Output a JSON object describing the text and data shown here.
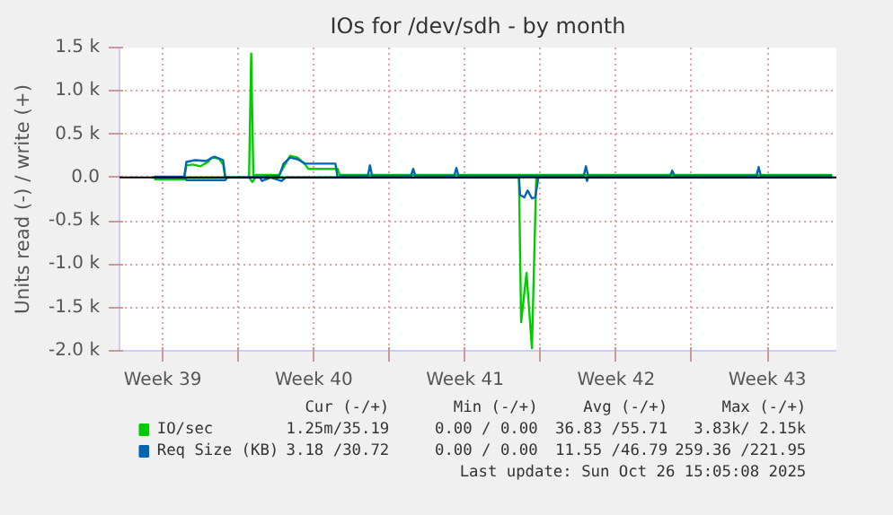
{
  "chart_data": {
    "type": "line",
    "title": "IOs for /dev/sdh - by month",
    "ylabel": "Units read (-) / write (+)",
    "xlim": [
      "2025-09-23T12:00",
      "2025-10-26T16:48"
    ],
    "ylim": [
      -2000,
      1500
    ],
    "xticks": [
      {
        "value": "2025-09-25T12:00",
        "label": "Week 39"
      },
      {
        "value": "2025-09-29T00:00",
        "label": null
      },
      {
        "value": "2025-10-02T12:00",
        "label": "Week 40"
      },
      {
        "value": "2025-10-06T00:00",
        "label": null
      },
      {
        "value": "2025-10-09T12:00",
        "label": "Week 41"
      },
      {
        "value": "2025-10-13T00:00",
        "label": null
      },
      {
        "value": "2025-10-16T12:00",
        "label": "Week 42"
      },
      {
        "value": "2025-10-20T00:00",
        "label": null
      },
      {
        "value": "2025-10-23T12:00",
        "label": "Week 43"
      }
    ],
    "yticks": [
      {
        "value": -2000,
        "label": "-2.0 k"
      },
      {
        "value": -1500,
        "label": "-1.5 k"
      },
      {
        "value": -1000,
        "label": "-1.0 k"
      },
      {
        "value": -500,
        "label": "-0.5 k"
      },
      {
        "value": 0,
        "label": "0.0"
      },
      {
        "value": 500,
        "label": "0.5 k"
      },
      {
        "value": 1000,
        "label": "1.0 k"
      },
      {
        "value": 1500,
        "label": "1.5 k"
      }
    ],
    "grid": true,
    "legend": "bottom",
    "ref_lines": [
      {
        "axis": "y",
        "value": 0,
        "color": "#000000"
      }
    ],
    "series": [
      {
        "name": "IO/sec",
        "color": "#00cc00",
        "x": [
          "2025-09-25T00:00",
          "2025-09-26T12:00",
          "2025-09-26T14:24",
          "2025-09-26T21:36",
          "2025-09-27T06:00",
          "2025-09-27T14:24",
          "2025-09-27T18:00",
          "2025-09-28T02:24",
          "2025-09-28T07:12",
          "2025-09-28T09:36",
          "2025-09-29T12:00",
          "2025-09-29T14:24",
          "2025-09-29T16:48",
          "2025-09-29T19:12",
          "2025-09-30T21:36",
          "2025-10-01T02:24",
          "2025-10-01T09:36",
          "2025-10-01T18:00",
          "2025-10-02T02:24",
          "2025-10-02T06:00",
          "2025-10-03T14:24",
          "2025-10-03T16:48",
          "2025-10-13T12:00",
          "2025-10-26T12:00"
        ],
        "values": [
          0,
          0,
          140,
          150,
          130,
          180,
          230,
          220,
          150,
          0,
          0,
          1430,
          0,
          30,
          30,
          120,
          250,
          230,
          150,
          100,
          100,
          30,
          30,
          30
        ]
      },
      {
        "name": "Req Size (KB)",
        "color": "#0066b3",
        "x": [
          "2025-09-25T02:24",
          "2025-09-26T12:00",
          "2025-09-26T14:24",
          "2025-09-27T00:00",
          "2025-09-27T12:00",
          "2025-09-27T21:36",
          "2025-09-28T07:12",
          "2025-09-28T09:36",
          "2025-09-29T12:00",
          "2025-09-30T21:36",
          "2025-10-01T02:24",
          "2025-10-01T09:36",
          "2025-10-01T18:00",
          "2025-10-02T02:24",
          "2025-10-03T12:00",
          "2025-10-03T14:24",
          "2025-10-03T19:12",
          "2025-10-05T00:00",
          "2025-10-05T02:24",
          "2025-10-05T04:48",
          "2025-10-07T00:00",
          "2025-10-07T02:24",
          "2025-10-07T04:48",
          "2025-10-09T00:00",
          "2025-10-09T02:24",
          "2025-10-09T04:48",
          "2025-10-15T00:00",
          "2025-10-15T02:24",
          "2025-10-15T04:48",
          "2025-10-19T00:00",
          "2025-10-19T02:24",
          "2025-10-19T04:48",
          "2025-10-23T00:00",
          "2025-10-23T02:24",
          "2025-10-23T04:48",
          "2025-10-26T12:00"
        ],
        "values": [
          10,
          10,
          180,
          200,
          190,
          240,
          200,
          0,
          0,
          20,
          160,
          230,
          210,
          160,
          160,
          0,
          20,
          20,
          140,
          20,
          20,
          100,
          20,
          20,
          110,
          20,
          20,
          130,
          20,
          20,
          80,
          20,
          20,
          120,
          20,
          20
        ]
      },
      {
        "color": "#00cc00",
        "x": [
          "2025-09-25T02:24",
          "2025-09-26T12:00",
          "2025-09-26T14:24",
          "2025-09-29T12:00",
          "2025-09-29T15:36",
          "2025-09-29T19:12",
          "2025-10-12T00:00",
          "2025-10-12T02:24",
          "2025-10-12T08:24",
          "2025-10-12T14:24",
          "2025-10-12T19:12",
          "2025-10-26T12:00"
        ],
        "values": [
          -20,
          -20,
          0,
          0,
          -50,
          0,
          0,
          -1670,
          -1100,
          -1970,
          0,
          0
        ]
      },
      {
        "color": "#0066b3",
        "x": [
          "2025-09-25T02:24",
          "2025-09-26T12:00",
          "2025-09-26T14:24",
          "2025-09-28T09:36",
          "2025-09-28T12:00",
          "2025-09-30T00:00",
          "2025-09-30T02:24",
          "2025-09-30T12:00",
          "2025-10-01T00:00",
          "2025-10-01T04:48",
          "2025-10-12T00:00",
          "2025-10-12T01:12",
          "2025-10-12T06:00",
          "2025-10-12T09:36",
          "2025-10-12T14:24",
          "2025-10-12T18:00",
          "2025-10-12T21:36",
          "2025-10-15T02:24",
          "2025-10-15T03:36",
          "2025-10-15T04:48",
          "2025-10-26T12:00"
        ],
        "values": [
          0,
          0,
          -30,
          -30,
          0,
          0,
          -40,
          0,
          -40,
          0,
          0,
          -200,
          -230,
          -150,
          -240,
          -230,
          0,
          0,
          -40,
          0,
          0
        ]
      }
    ],
    "annotations": [
      "Cur (-/+)",
      "Min (-/+)",
      "Avg (-/+)",
      "Max (-/+)",
      "1.25m/35.19",
      "0.00 / 0.00",
      "36.83 /55.71",
      "3.83k/ 2.15k",
      "3.18 /30.72",
      "0.00 / 0.00",
      "11.55 /46.79",
      "259.36 /221.95",
      "Last update: Sun Oct 26 15:05:08 2025"
    ]
  }
}
